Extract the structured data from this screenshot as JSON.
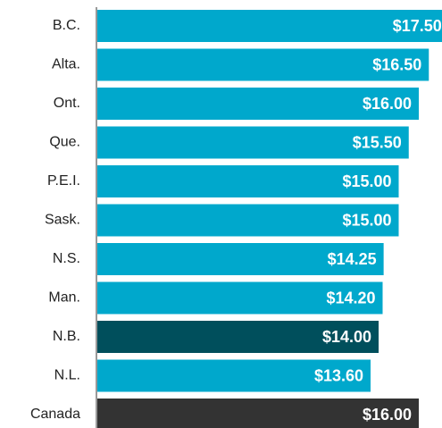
{
  "chart_data": {
    "type": "bar",
    "orientation": "horizontal",
    "categories": [
      "B.C.",
      "Alta.",
      "Ont.",
      "Que.",
      "P.E.I.",
      "Sask.",
      "N.S.",
      "Man.",
      "N.B.",
      "N.L.",
      "Canada"
    ],
    "values": [
      17.5,
      16.5,
      16,
      15.5,
      15,
      15,
      14.25,
      14.2,
      14,
      13.6,
      16
    ],
    "value_labels": [
      "$17.50",
      "$16.50",
      "$16.00",
      "$15.50",
      "$15.00",
      "$15.00",
      "$14.25",
      "$14.20",
      "$14.00",
      "$13.60",
      "$16.00"
    ],
    "colors": [
      "#00a8cc",
      "#00a8cc",
      "#00a8cc",
      "#00a8cc",
      "#00a8cc",
      "#00a8cc",
      "#00a8cc",
      "#00a8cc",
      "#004f5c",
      "#00a8cc",
      "#333333"
    ]
  }
}
